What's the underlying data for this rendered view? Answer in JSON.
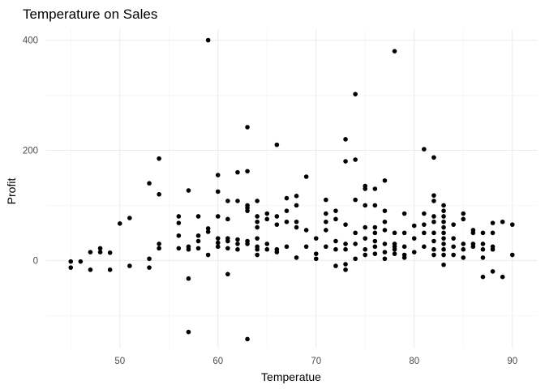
{
  "chart_data": {
    "type": "scatter",
    "title": "Temperature on Sales",
    "xlabel": "Temperatue",
    "ylabel": "Profit",
    "xlim": [
      42.5,
      92.5
    ],
    "ylim": [
      -160,
      420
    ],
    "x_ticks": [
      50,
      60,
      70,
      80,
      90
    ],
    "y_ticks": [
      0,
      200,
      400
    ],
    "grid": true,
    "legend": "none",
    "point_color": "#000000",
    "points": [
      {
        "x": 45,
        "y": -2
      },
      {
        "x": 45,
        "y": -13
      },
      {
        "x": 46,
        "y": -2
      },
      {
        "x": 47,
        "y": 15
      },
      {
        "x": 47,
        "y": -17
      },
      {
        "x": 48,
        "y": 22
      },
      {
        "x": 48,
        "y": 15
      },
      {
        "x": 49,
        "y": 14
      },
      {
        "x": 49,
        "y": -17
      },
      {
        "x": 50,
        "y": 67
      },
      {
        "x": 51,
        "y": 77
      },
      {
        "x": 51,
        "y": -10
      },
      {
        "x": 53,
        "y": 140
      },
      {
        "x": 53,
        "y": 3
      },
      {
        "x": 53,
        "y": -13
      },
      {
        "x": 54,
        "y": 185
      },
      {
        "x": 54,
        "y": 120
      },
      {
        "x": 54,
        "y": 30
      },
      {
        "x": 54,
        "y": 22
      },
      {
        "x": 56,
        "y": 80
      },
      {
        "x": 56,
        "y": 68
      },
      {
        "x": 56,
        "y": 45
      },
      {
        "x": 56,
        "y": 22
      },
      {
        "x": 57,
        "y": 127
      },
      {
        "x": 57,
        "y": 25
      },
      {
        "x": 57,
        "y": 20
      },
      {
        "x": 57,
        "y": -33
      },
      {
        "x": 57,
        "y": -130
      },
      {
        "x": 58,
        "y": 80
      },
      {
        "x": 58,
        "y": 45
      },
      {
        "x": 58,
        "y": 35
      },
      {
        "x": 58,
        "y": 22
      },
      {
        "x": 59,
        "y": 400
      },
      {
        "x": 59,
        "y": 58
      },
      {
        "x": 59,
        "y": 52
      },
      {
        "x": 59,
        "y": 10
      },
      {
        "x": 60,
        "y": 155
      },
      {
        "x": 60,
        "y": 125
      },
      {
        "x": 60,
        "y": 80
      },
      {
        "x": 60,
        "y": 40
      },
      {
        "x": 60,
        "y": 32
      },
      {
        "x": 60,
        "y": 25
      },
      {
        "x": 61,
        "y": 108
      },
      {
        "x": 61,
        "y": 75
      },
      {
        "x": 61,
        "y": 40
      },
      {
        "x": 61,
        "y": 35
      },
      {
        "x": 61,
        "y": 22
      },
      {
        "x": 61,
        "y": -25
      },
      {
        "x": 62,
        "y": 160
      },
      {
        "x": 62,
        "y": 108
      },
      {
        "x": 62,
        "y": 38
      },
      {
        "x": 62,
        "y": 30
      },
      {
        "x": 62,
        "y": 20
      },
      {
        "x": 63,
        "y": 242
      },
      {
        "x": 63,
        "y": 162
      },
      {
        "x": 63,
        "y": 100
      },
      {
        "x": 63,
        "y": 95
      },
      {
        "x": 63,
        "y": 90
      },
      {
        "x": 63,
        "y": 35
      },
      {
        "x": 63,
        "y": 30
      },
      {
        "x": 63,
        "y": -143
      },
      {
        "x": 64,
        "y": 108
      },
      {
        "x": 64,
        "y": 80
      },
      {
        "x": 64,
        "y": 70
      },
      {
        "x": 64,
        "y": 60
      },
      {
        "x": 64,
        "y": 40
      },
      {
        "x": 64,
        "y": 25
      },
      {
        "x": 64,
        "y": 20
      },
      {
        "x": 64,
        "y": 10
      },
      {
        "x": 65,
        "y": 85
      },
      {
        "x": 65,
        "y": 75
      },
      {
        "x": 65,
        "y": 30
      },
      {
        "x": 65,
        "y": 20
      },
      {
        "x": 66,
        "y": 210
      },
      {
        "x": 66,
        "y": 80
      },
      {
        "x": 66,
        "y": 65
      },
      {
        "x": 66,
        "y": 20
      },
      {
        "x": 66,
        "y": 15
      },
      {
        "x": 67,
        "y": 113
      },
      {
        "x": 67,
        "y": 90
      },
      {
        "x": 67,
        "y": 70
      },
      {
        "x": 67,
        "y": 25
      },
      {
        "x": 68,
        "y": 117
      },
      {
        "x": 68,
        "y": 100
      },
      {
        "x": 68,
        "y": 70
      },
      {
        "x": 68,
        "y": 60
      },
      {
        "x": 68,
        "y": 5
      },
      {
        "x": 69,
        "y": 152
      },
      {
        "x": 69,
        "y": 55
      },
      {
        "x": 69,
        "y": 25
      },
      {
        "x": 70,
        "y": 40
      },
      {
        "x": 70,
        "y": 12
      },
      {
        "x": 70,
        "y": 3
      },
      {
        "x": 71,
        "y": 110
      },
      {
        "x": 71,
        "y": 85
      },
      {
        "x": 71,
        "y": 70
      },
      {
        "x": 71,
        "y": 55
      },
      {
        "x": 71,
        "y": 25
      },
      {
        "x": 72,
        "y": 90
      },
      {
        "x": 72,
        "y": 75
      },
      {
        "x": 72,
        "y": 35
      },
      {
        "x": 72,
        "y": 20
      },
      {
        "x": 72,
        "y": -10
      },
      {
        "x": 73,
        "y": 220
      },
      {
        "x": 73,
        "y": 180
      },
      {
        "x": 73,
        "y": 65
      },
      {
        "x": 73,
        "y": 30
      },
      {
        "x": 73,
        "y": 20
      },
      {
        "x": 73,
        "y": -7
      },
      {
        "x": 73,
        "y": -17
      },
      {
        "x": 74,
        "y": 302
      },
      {
        "x": 74,
        "y": 183
      },
      {
        "x": 74,
        "y": 110
      },
      {
        "x": 74,
        "y": 50
      },
      {
        "x": 74,
        "y": 30
      },
      {
        "x": 74,
        "y": 3
      },
      {
        "x": 75,
        "y": 135
      },
      {
        "x": 75,
        "y": 130
      },
      {
        "x": 75,
        "y": 100
      },
      {
        "x": 75,
        "y": 60
      },
      {
        "x": 75,
        "y": 40
      },
      {
        "x": 75,
        "y": 20
      },
      {
        "x": 75,
        "y": 10
      },
      {
        "x": 76,
        "y": 130
      },
      {
        "x": 76,
        "y": 100
      },
      {
        "x": 76,
        "y": 60
      },
      {
        "x": 76,
        "y": 50
      },
      {
        "x": 76,
        "y": 35
      },
      {
        "x": 76,
        "y": 25
      },
      {
        "x": 76,
        "y": 12
      },
      {
        "x": 77,
        "y": 145
      },
      {
        "x": 77,
        "y": 90
      },
      {
        "x": 77,
        "y": 70
      },
      {
        "x": 77,
        "y": 55
      },
      {
        "x": 77,
        "y": 30
      },
      {
        "x": 77,
        "y": 15
      },
      {
        "x": 77,
        "y": 3
      },
      {
        "x": 78,
        "y": 380
      },
      {
        "x": 78,
        "y": 50
      },
      {
        "x": 78,
        "y": 30
      },
      {
        "x": 78,
        "y": 25
      },
      {
        "x": 78,
        "y": 20
      },
      {
        "x": 78,
        "y": 12
      },
      {
        "x": 79,
        "y": 85
      },
      {
        "x": 79,
        "y": 50
      },
      {
        "x": 79,
        "y": 25
      },
      {
        "x": 79,
        "y": 10
      },
      {
        "x": 79,
        "y": 5
      },
      {
        "x": 80,
        "y": 63
      },
      {
        "x": 80,
        "y": 40
      },
      {
        "x": 80,
        "y": 15
      },
      {
        "x": 81,
        "y": 202
      },
      {
        "x": 81,
        "y": 85
      },
      {
        "x": 81,
        "y": 65
      },
      {
        "x": 81,
        "y": 50
      },
      {
        "x": 81,
        "y": 25
      },
      {
        "x": 82,
        "y": 187
      },
      {
        "x": 82,
        "y": 118
      },
      {
        "x": 82,
        "y": 108
      },
      {
        "x": 82,
        "y": 80
      },
      {
        "x": 82,
        "y": 70
      },
      {
        "x": 82,
        "y": 50
      },
      {
        "x": 82,
        "y": 35
      },
      {
        "x": 82,
        "y": 20
      },
      {
        "x": 82,
        "y": 10
      },
      {
        "x": 83,
        "y": 100
      },
      {
        "x": 83,
        "y": 90
      },
      {
        "x": 83,
        "y": 80
      },
      {
        "x": 83,
        "y": 70
      },
      {
        "x": 83,
        "y": 60
      },
      {
        "x": 83,
        "y": 50
      },
      {
        "x": 83,
        "y": 40
      },
      {
        "x": 83,
        "y": 30
      },
      {
        "x": 83,
        "y": 20
      },
      {
        "x": 83,
        "y": 10
      },
      {
        "x": 83,
        "y": -8
      },
      {
        "x": 84,
        "y": 65
      },
      {
        "x": 84,
        "y": 40
      },
      {
        "x": 84,
        "y": 25
      },
      {
        "x": 84,
        "y": 10
      },
      {
        "x": 85,
        "y": 85
      },
      {
        "x": 85,
        "y": 75
      },
      {
        "x": 85,
        "y": 30
      },
      {
        "x": 85,
        "y": 20
      },
      {
        "x": 85,
        "y": 5
      },
      {
        "x": 86,
        "y": 55
      },
      {
        "x": 86,
        "y": 50
      },
      {
        "x": 86,
        "y": 30
      },
      {
        "x": 86,
        "y": 25
      },
      {
        "x": 87,
        "y": 50
      },
      {
        "x": 87,
        "y": 30
      },
      {
        "x": 87,
        "y": 20
      },
      {
        "x": 87,
        "y": 5
      },
      {
        "x": 87,
        "y": -30
      },
      {
        "x": 88,
        "y": 68
      },
      {
        "x": 88,
        "y": 50
      },
      {
        "x": 88,
        "y": 25
      },
      {
        "x": 88,
        "y": 20
      },
      {
        "x": 88,
        "y": -20
      },
      {
        "x": 89,
        "y": 70
      },
      {
        "x": 89,
        "y": -30
      },
      {
        "x": 90,
        "y": 65
      },
      {
        "x": 90,
        "y": 10
      }
    ]
  }
}
